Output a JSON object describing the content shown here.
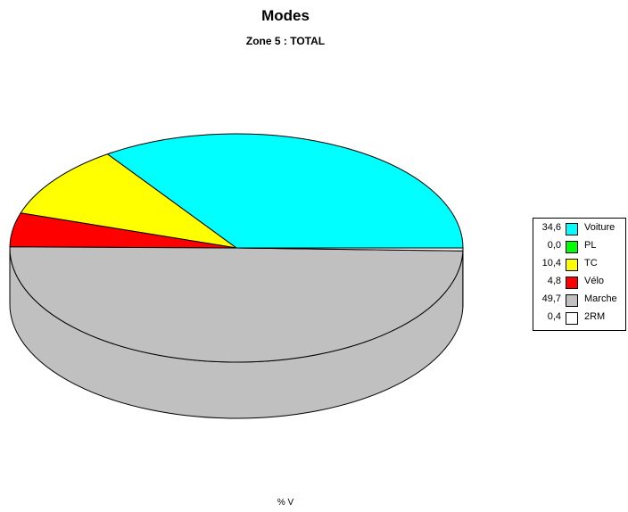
{
  "chart_data": {
    "type": "pie",
    "style": "3d",
    "title": "Modes",
    "subtitle": "Zone 5 : TOTAL",
    "footer": "% V",
    "legend_position": "right",
    "slices": [
      {
        "label": "Voiture",
        "display": "34,6",
        "value": 34.6,
        "color": "#00FFFF"
      },
      {
        "label": "PL",
        "display": "0,0",
        "value": 0.0,
        "color": "#00FF00"
      },
      {
        "label": "TC",
        "display": "10,4",
        "value": 10.4,
        "color": "#FFFF00"
      },
      {
        "label": "Vélo",
        "display": "4,8",
        "value": 4.8,
        "color": "#FF0000"
      },
      {
        "label": "Marche",
        "display": "49,7",
        "value": 49.7,
        "color": "#C0C0C0"
      },
      {
        "label": "2RM",
        "display": "0,4",
        "value": 0.4,
        "color": "#FFFFFF"
      }
    ]
  }
}
